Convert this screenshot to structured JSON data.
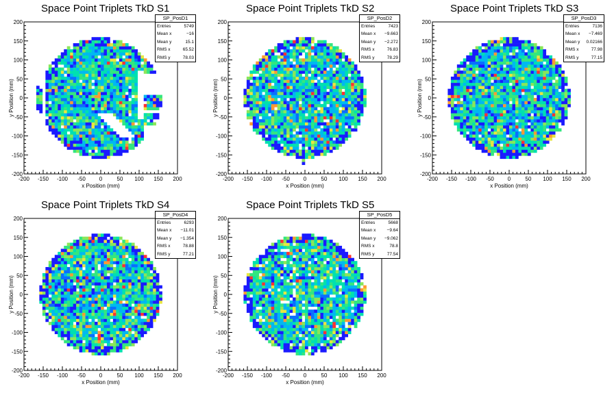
{
  "canvas": {
    "background": "#ffffff"
  },
  "colors": {
    "palette": [
      "#1a1aff",
      "#0a6fff",
      "#00b8f0",
      "#00e0b0",
      "#33e680",
      "#8ae65a",
      "#e8e640",
      "#ff9a33",
      "#ff3333"
    ]
  },
  "chart_data": [
    {
      "type": "heatmap",
      "title": "Space Point Triplets TkD S1",
      "xlabel": "x Position (mm)",
      "ylabel": "y Position (mm)",
      "xlim": [
        -200,
        200
      ],
      "ylim": [
        -200,
        200
      ],
      "xticks": [
        -200,
        -150,
        -100,
        -50,
        0,
        50,
        100,
        150,
        200
      ],
      "yticks": [
        -200,
        -150,
        -100,
        -50,
        0,
        50,
        100,
        150,
        200
      ],
      "pattern": "disc r~160 with gaps (outer left strip, lower-right arc band, right-side segments)",
      "stats": {
        "name": "SP_PosD1",
        "rows": [
          {
            "label": "Entries",
            "value": "5749"
          },
          {
            "label": "Mean x",
            "value": "−16"
          },
          {
            "label": "Mean y",
            "value": "15.1"
          },
          {
            "label": "RMS x",
            "value": "65.52"
          },
          {
            "label": "RMS y",
            "value": "78.03"
          }
        ]
      }
    },
    {
      "type": "heatmap",
      "title": "Space Point Triplets TkD S2",
      "xlabel": "x Position (mm)",
      "ylabel": "y Position (mm)",
      "xlim": [
        -200,
        200
      ],
      "ylim": [
        -200,
        200
      ],
      "xticks": [
        -200,
        -150,
        -100,
        -50,
        0,
        50,
        100,
        150,
        200
      ],
      "yticks": [
        -200,
        -150,
        -100,
        -50,
        0,
        50,
        100,
        150,
        200
      ],
      "pattern": "disc r~160 with faint diagonal stripes",
      "stats": {
        "name": "SP_PosD2",
        "rows": [
          {
            "label": "Entries",
            "value": "7423"
          },
          {
            "label": "Mean x",
            "value": "−9.663"
          },
          {
            "label": "Mean y",
            "value": "−2.272"
          },
          {
            "label": "RMS x",
            "value": "76.83"
          },
          {
            "label": "RMS y",
            "value": "78.29"
          }
        ]
      }
    },
    {
      "type": "heatmap",
      "title": "Space Point Triplets TkD S3",
      "xlabel": "x Position (mm)",
      "ylabel": "y Position (mm)",
      "xlim": [
        -200,
        200
      ],
      "ylim": [
        -200,
        200
      ],
      "xticks": [
        -200,
        -150,
        -100,
        -50,
        0,
        50,
        100,
        150,
        200
      ],
      "yticks": [
        -200,
        -150,
        -100,
        -50,
        0,
        50,
        100,
        150,
        200
      ],
      "pattern": "full disc r~160",
      "stats": {
        "name": "SP_PosD3",
        "rows": [
          {
            "label": "Entries",
            "value": "7136"
          },
          {
            "label": "Mean x",
            "value": "−7.469"
          },
          {
            "label": "Mean y",
            "value": "0.02166"
          },
          {
            "label": "RMS x",
            "value": "77.98"
          },
          {
            "label": "RMS y",
            "value": "77.15"
          }
        ]
      }
    },
    {
      "type": "heatmap",
      "title": "Space Point Triplets TkD S4",
      "xlabel": "x Position (mm)",
      "ylabel": "y Position (mm)",
      "xlim": [
        -200,
        200
      ],
      "ylim": [
        -200,
        200
      ],
      "xticks": [
        -200,
        -150,
        -100,
        -50,
        0,
        50,
        100,
        150,
        200
      ],
      "yticks": [
        -200,
        -150,
        -100,
        -50,
        0,
        50,
        100,
        150,
        200
      ],
      "pattern": "full disc r~160",
      "stats": {
        "name": "SP_PosD4",
        "rows": [
          {
            "label": "Entries",
            "value": "6293"
          },
          {
            "label": "Mean x",
            "value": "−11.01"
          },
          {
            "label": "Mean y",
            "value": "−1.354"
          },
          {
            "label": "RMS x",
            "value": "78.88"
          },
          {
            "label": "RMS y",
            "value": "77.21"
          }
        ]
      }
    },
    {
      "type": "heatmap",
      "title": "Space Point Triplets TkD S5",
      "xlabel": "x Position (mm)",
      "ylabel": "y Position (mm)",
      "xlim": [
        -200,
        200
      ],
      "ylim": [
        -200,
        200
      ],
      "xticks": [
        -200,
        -150,
        -100,
        -50,
        0,
        50,
        100,
        150,
        200
      ],
      "yticks": [
        -200,
        -150,
        -100,
        -50,
        0,
        50,
        100,
        150,
        200
      ],
      "pattern": "full disc r~160 with sparse holes",
      "stats": {
        "name": "SP_PosD5",
        "rows": [
          {
            "label": "Entries",
            "value": "5668"
          },
          {
            "label": "Mean x",
            "value": "−9.64"
          },
          {
            "label": "Mean y",
            "value": "−9.062"
          },
          {
            "label": "RMS x",
            "value": "78.8"
          },
          {
            "label": "RMS y",
            "value": "77.54"
          }
        ]
      }
    }
  ]
}
